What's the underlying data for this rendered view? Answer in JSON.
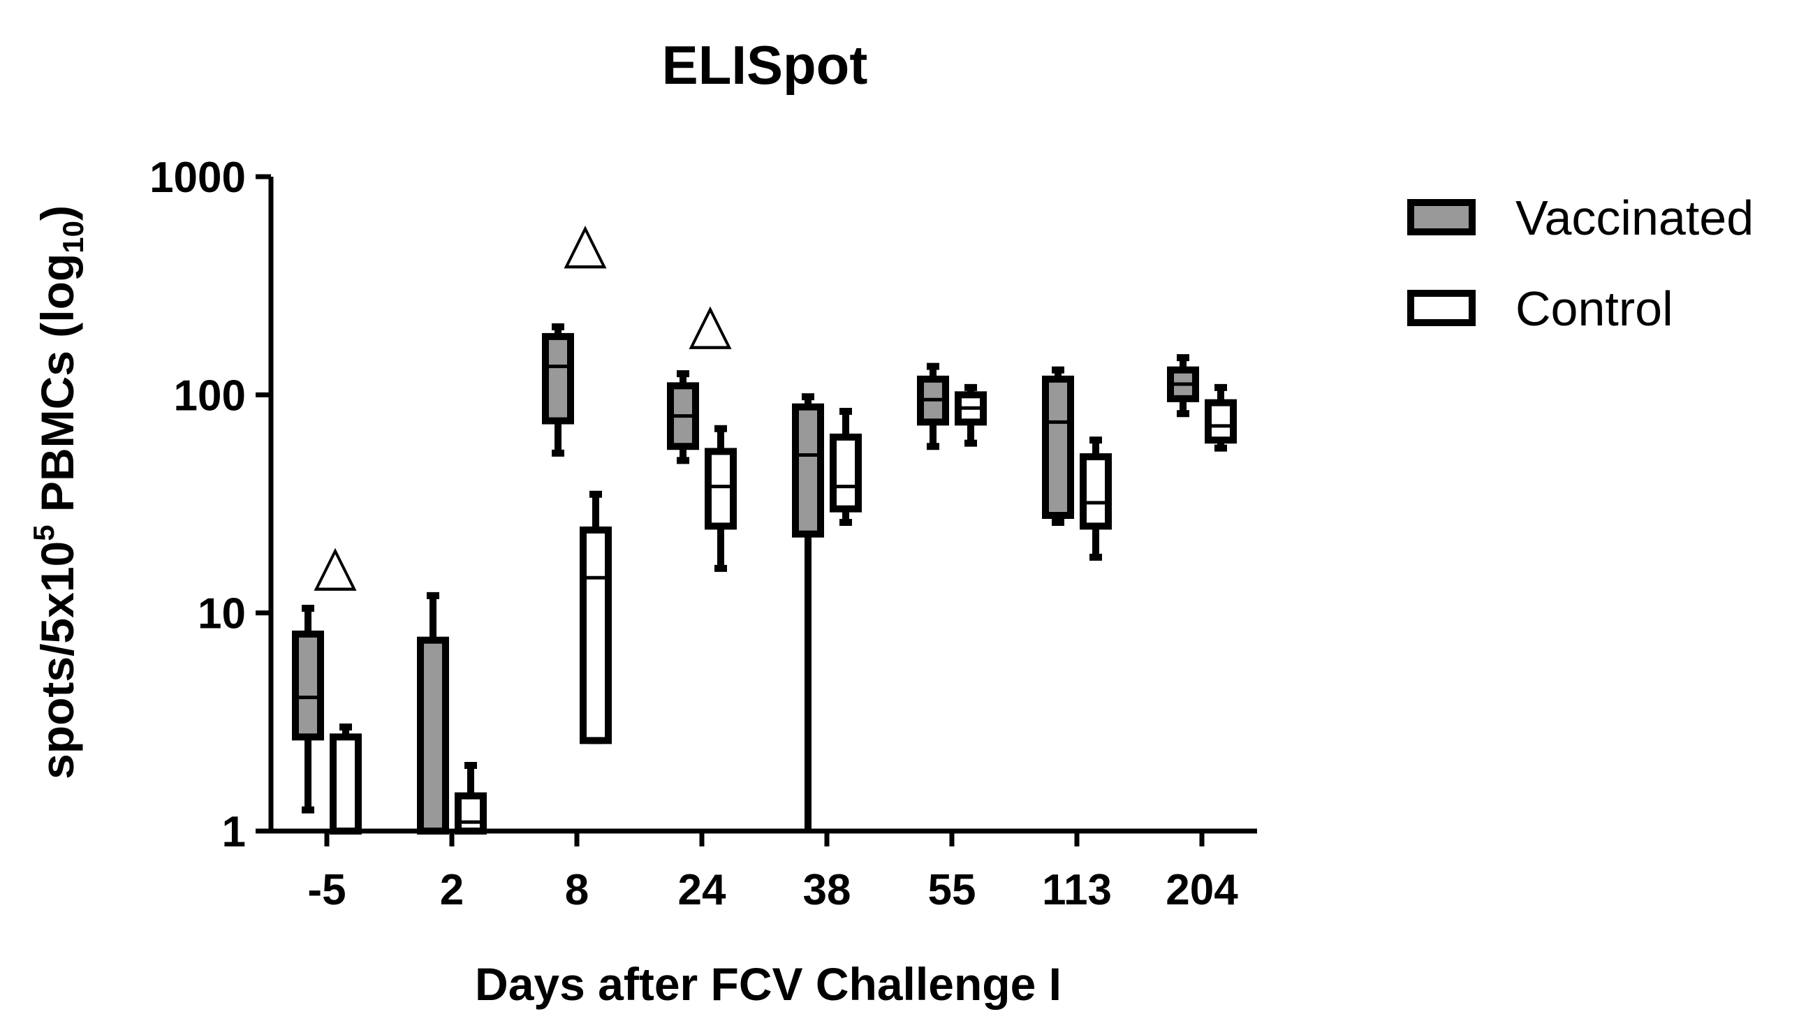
{
  "chart_data": {
    "type": "box",
    "title": "ELISpot",
    "xlabel": "Days after FCV Challenge I",
    "ylabel": {
      "base": "spots/5x10",
      "sup": "5",
      "mid": " PBMCs (log",
      "sub": "10",
      "end": ")"
    },
    "yscale": "log",
    "ylim": [
      1,
      1000
    ],
    "yticks": [
      1,
      10,
      100,
      1000
    ],
    "ytick_labels": [
      "1",
      "10",
      "100",
      "1000"
    ],
    "categories": [
      "-5",
      "2",
      "8",
      "24",
      "38",
      "55",
      "113",
      "204"
    ],
    "legend": {
      "position": "right",
      "entries": [
        "Vaccinated",
        "Control"
      ]
    },
    "colors": {
      "Vaccinated": "#999999",
      "Control": "#ffffff",
      "stroke": "#000000"
    },
    "series": [
      {
        "name": "Vaccinated",
        "boxes": [
          {
            "min": 1.25,
            "q1": 2.7,
            "median": 4.1,
            "q3": 8.0,
            "max": 10.5
          },
          {
            "min": 1.0,
            "q1": 1.0,
            "median": 1.0,
            "q3": 7.5,
            "max": 12.0
          },
          {
            "min": 54,
            "q1": 76,
            "median": 135,
            "q3": 185,
            "max": 205
          },
          {
            "min": 50,
            "q1": 58,
            "median": 80,
            "q3": 110,
            "max": 125
          },
          {
            "min": 1.0,
            "q1": 23,
            "median": 53,
            "q3": 88,
            "max": 98
          },
          {
            "min": 58,
            "q1": 75,
            "median": 95,
            "q3": 118,
            "max": 135
          },
          {
            "min": 26,
            "q1": 28,
            "median": 75,
            "q3": 118,
            "max": 130
          },
          {
            "min": 82,
            "q1": 96,
            "median": 112,
            "q3": 130,
            "max": 148
          }
        ]
      },
      {
        "name": "Control",
        "boxes": [
          {
            "min": 1.0,
            "q1": 1.0,
            "median": 1.0,
            "q3": 2.7,
            "max": 3.0
          },
          {
            "min": 1.0,
            "q1": 1.0,
            "median": 1.1,
            "q3": 1.45,
            "max": 2.0
          },
          {
            "min": 2.6,
            "q1": 2.6,
            "median": 14.5,
            "q3": 24,
            "max": 35
          },
          {
            "min": 16,
            "q1": 25,
            "median": 38,
            "q3": 55,
            "max": 70
          },
          {
            "min": 26,
            "q1": 30,
            "median": 38,
            "q3": 64,
            "max": 84
          },
          {
            "min": 60,
            "q1": 75,
            "median": 87,
            "q3": 100,
            "max": 108
          },
          {
            "min": 18,
            "q1": 25,
            "median": 32,
            "q3": 52,
            "max": 62
          },
          {
            "min": 57,
            "q1": 62,
            "median": 72,
            "q3": 92,
            "max": 108
          }
        ]
      }
    ],
    "annotations": [
      {
        "symbol": "△",
        "category": "-5",
        "y": 16
      },
      {
        "symbol": "△",
        "category": "8",
        "y": 480
      },
      {
        "symbol": "△",
        "category": "24",
        "y": 205
      }
    ]
  }
}
